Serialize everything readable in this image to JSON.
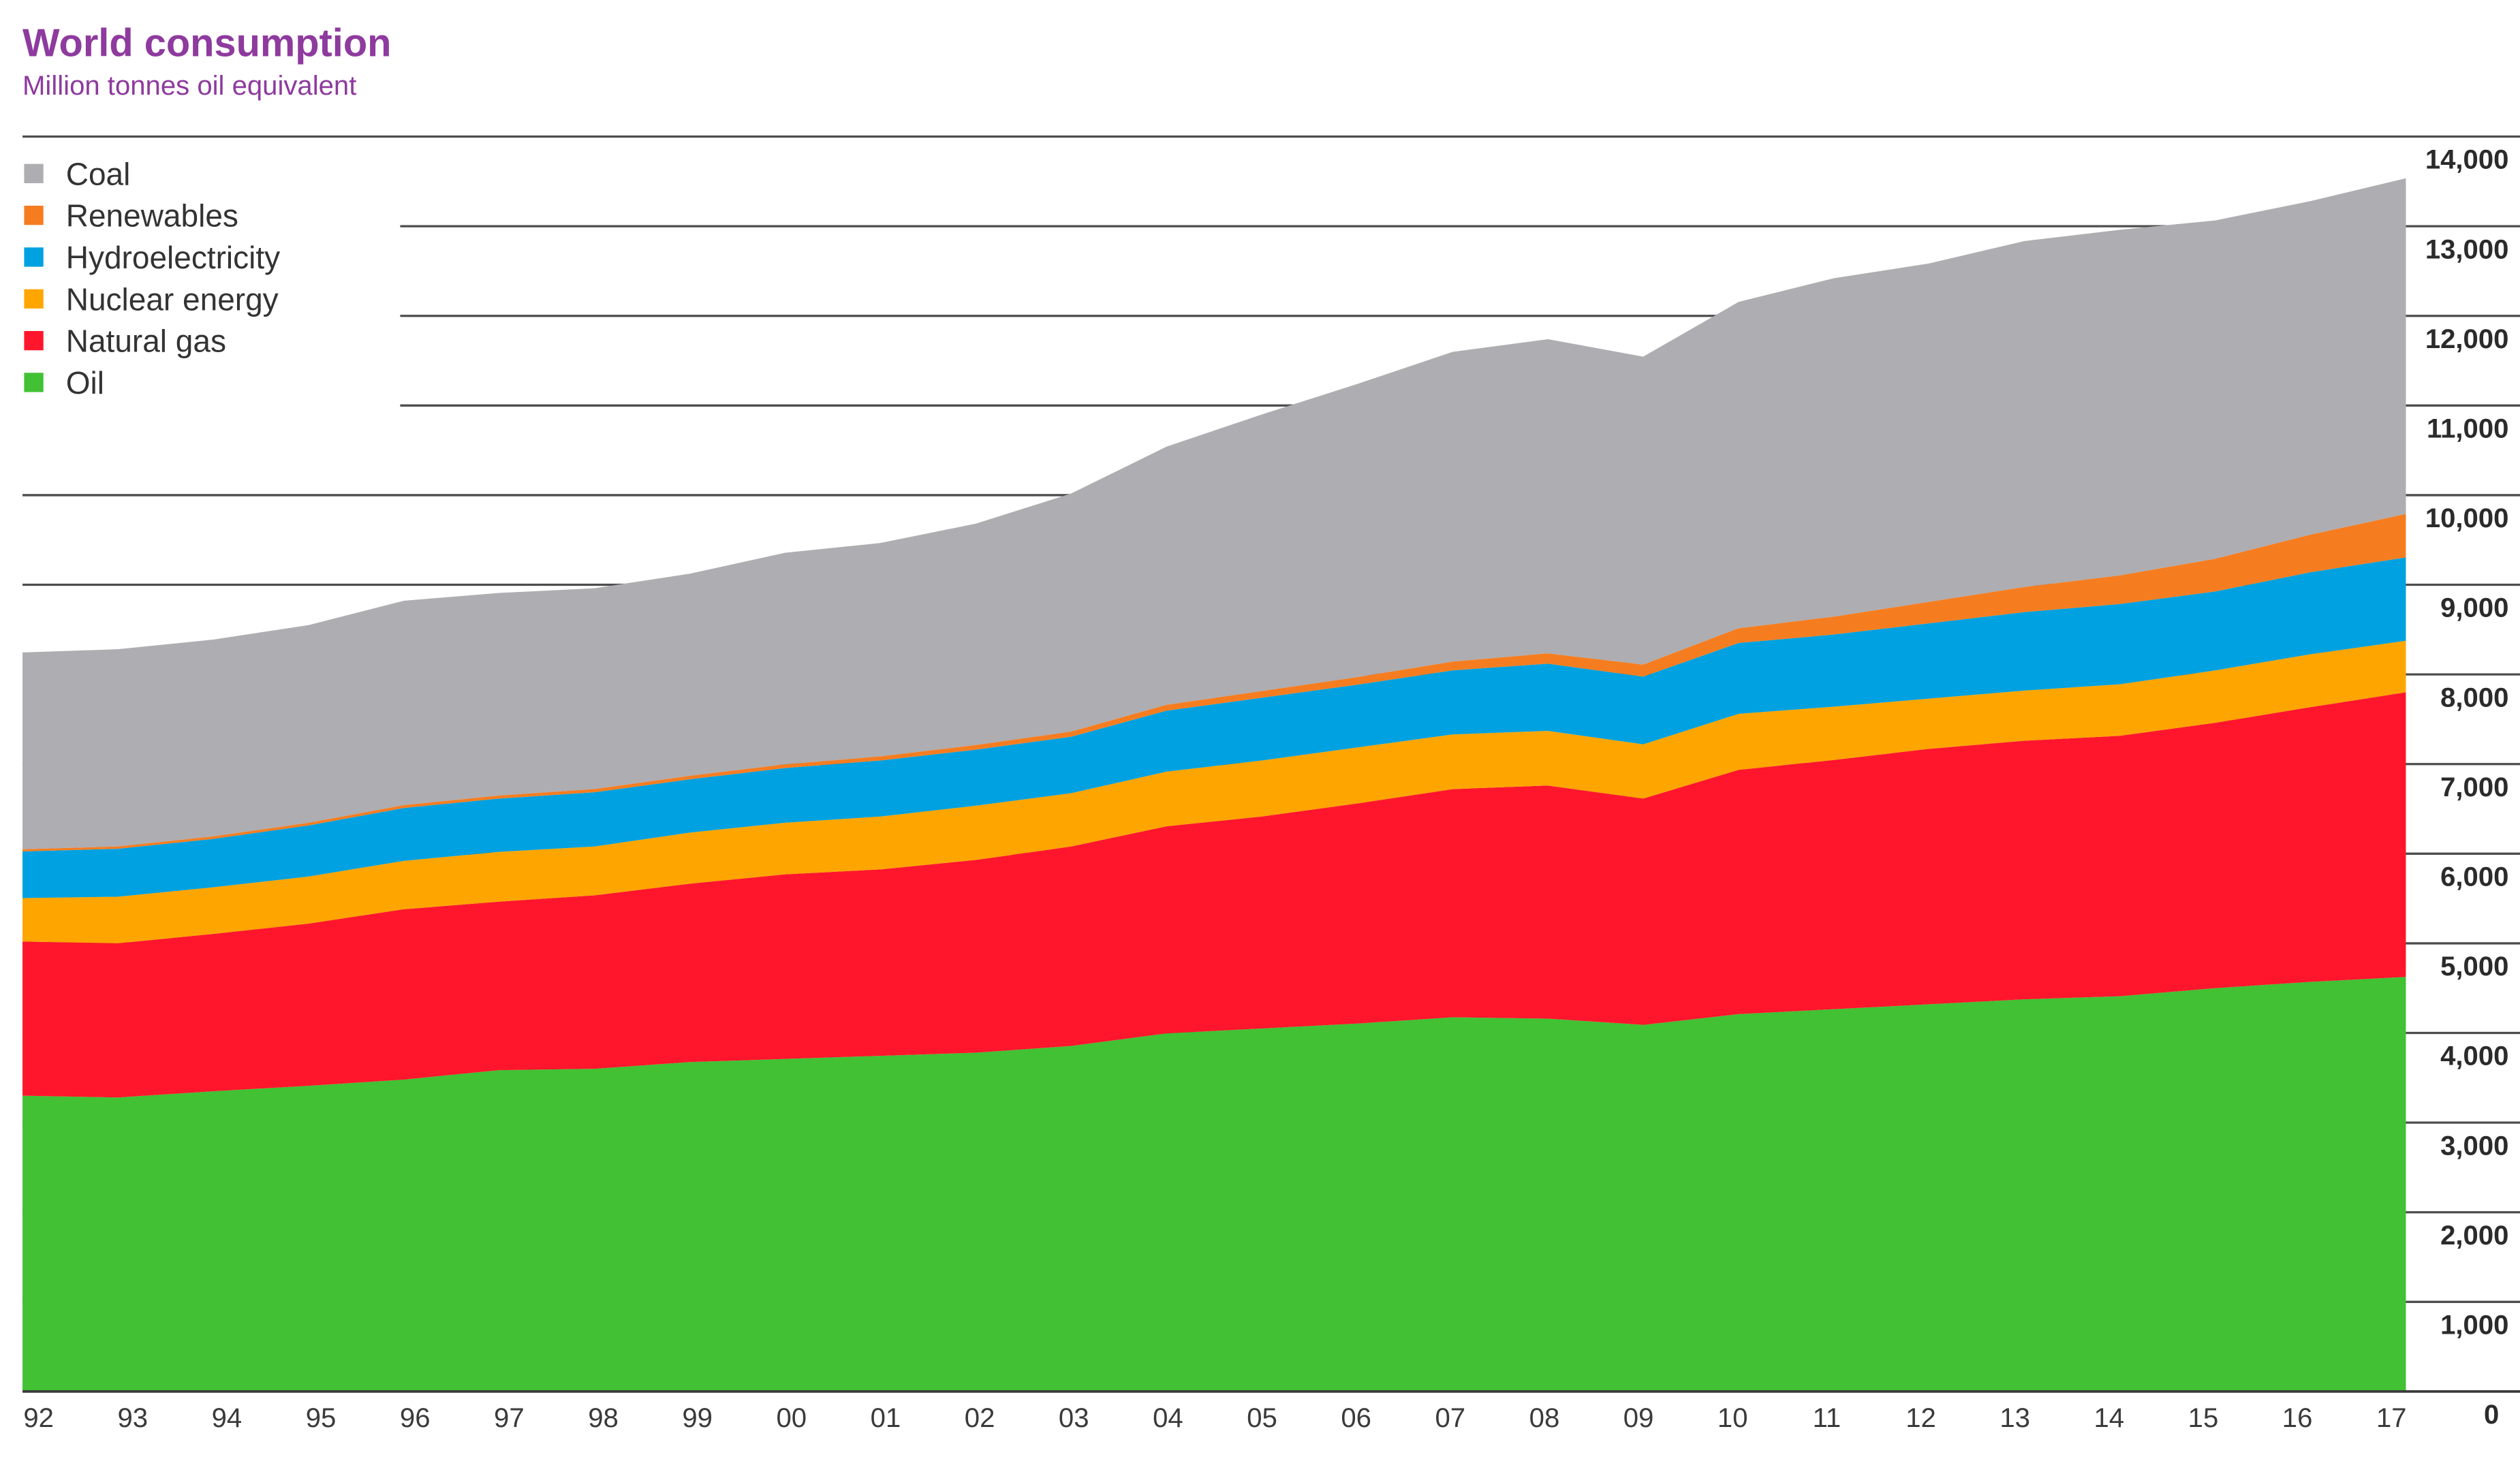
{
  "colors": {
    "title_text": "#8e3a9e"
  },
  "chart_data": {
    "type": "area",
    "stacked": true,
    "title": "World consumption",
    "subtitle": "Million tonnes oil equivalent",
    "x": [
      "92",
      "93",
      "94",
      "95",
      "96",
      "97",
      "98",
      "99",
      "00",
      "01",
      "02",
      "03",
      "04",
      "05",
      "06",
      "07",
      "08",
      "09",
      "10",
      "11",
      "12",
      "13",
      "14",
      "15",
      "16",
      "17"
    ],
    "ylim": [
      0,
      14000
    ],
    "y_ticks": [
      0,
      1000,
      2000,
      3000,
      4000,
      5000,
      6000,
      7000,
      8000,
      9000,
      10000,
      11000,
      12000,
      13000,
      14000
    ],
    "y_tick_labels": [
      "0",
      "1,000",
      "2,000",
      "3,000",
      "4,000",
      "5,000",
      "6,000",
      "7,000",
      "8,000",
      "9,000",
      "10,000",
      "11,000",
      "12,000",
      "13,000",
      "14,000"
    ],
    "y_axis_side": "right",
    "grid": true,
    "legend_position": "top-left",
    "series": [
      {
        "name": "Coal",
        "color": "#aeadb1",
        "values": [
          2195,
          2200,
          2195,
          2205,
          2280,
          2260,
          2240,
          2255,
          2360,
          2380,
          2470,
          2655,
          2880,
          3085,
          3270,
          3455,
          3505,
          3435,
          3640,
          3775,
          3775,
          3860,
          3855,
          3775,
          3720,
          3745
        ]
      },
      {
        "name": "Renewables",
        "color": "#f57d20",
        "values": [
          25,
          26,
          28,
          30,
          32,
          34,
          36,
          39,
          42,
          46,
          52,
          58,
          66,
          75,
          85,
          98,
          115,
          135,
          165,
          200,
          240,
          280,
          320,
          365,
          420,
          485
        ]
      },
      {
        "name": "Hydroelectricity",
        "color": "#00a1e0",
        "values": [
          520,
          535,
          540,
          570,
          590,
          595,
          605,
          595,
          610,
          625,
          625,
          630,
          680,
          700,
          700,
          715,
          750,
          755,
          790,
          805,
          840,
          875,
          895,
          880,
          915,
          930
        ]
      },
      {
        "name": "Nuclear energy",
        "color": "#ffa500",
        "values": [
          485,
          520,
          520,
          525,
          540,
          555,
          545,
          570,
          575,
          590,
          605,
          595,
          610,
          625,
          625,
          610,
          610,
          605,
          625,
          595,
          560,
          560,
          575,
          585,
          590,
          575
        ]
      },
      {
        "name": "Natural gas",
        "color": "#ff162c",
        "values": [
          1720,
          1720,
          1755,
          1810,
          1900,
          1880,
          1935,
          1990,
          2060,
          2080,
          2150,
          2225,
          2310,
          2365,
          2455,
          2545,
          2600,
          2525,
          2725,
          2780,
          2850,
          2885,
          2905,
          2960,
          3065,
          3175
        ]
      },
      {
        "name": "Oil",
        "color": "#41c133",
        "values": [
          3300,
          3280,
          3350,
          3410,
          3480,
          3585,
          3600,
          3675,
          3710,
          3745,
          3780,
          3855,
          3995,
          4050,
          4105,
          4175,
          4160,
          4090,
          4210,
          4265,
          4320,
          4375,
          4410,
          4500,
          4570,
          4625
        ]
      }
    ]
  }
}
